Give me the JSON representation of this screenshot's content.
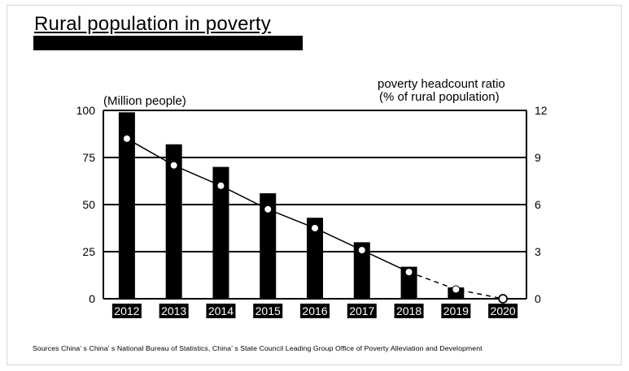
{
  "title": "Rural population in poverty",
  "source": "Sources China’ s China’ s National Bureau of Statistics, China’ s State Council Leading Group Office of Poverty Alleviation and Development",
  "chart_data": {
    "type": "bar",
    "categories": [
      "2012",
      "2013",
      "2014",
      "2015",
      "2016",
      "2017",
      "2018",
      "2019",
      "2020"
    ],
    "series": [
      {
        "name": "",
        "axis": "left",
        "values": [
          99,
          82,
          70,
          56,
          43,
          30,
          17,
          6,
          0
        ]
      },
      {
        "name": "",
        "axis": "right",
        "type": "line",
        "values": [
          10.2,
          8.5,
          7.2,
          5.7,
          4.5,
          3.1,
          1.7,
          0.6,
          0
        ],
        "dashed_from": "2018",
        "open_marker_at": "2020"
      }
    ],
    "ylabel": "(Million people)",
    "ylabel_right": "poverty headcount ratio\n(% of rural population)",
    "ylim": [
      0,
      100
    ],
    "ylim_right": [
      0,
      12
    ],
    "yticks": [
      0,
      25,
      50,
      75,
      100
    ],
    "yticks_right": [
      0,
      3,
      6,
      9,
      12
    ],
    "grid": "horizontal",
    "legend": "none"
  }
}
